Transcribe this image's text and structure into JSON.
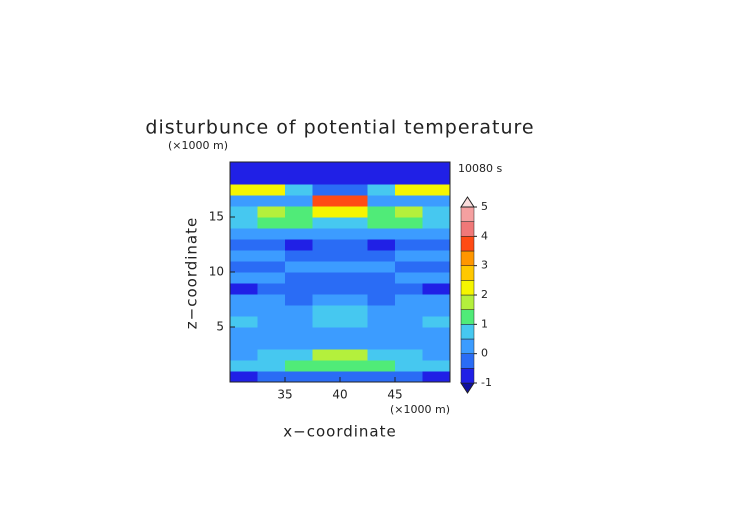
{
  "chart_data": {
    "type": "contourf",
    "title": "disturbunce of potential temperature",
    "time_label": "10080 s",
    "x_label": "x−coordinate",
    "y_label": "z−coordinate",
    "x_unit": "(×1000 m)",
    "y_unit": "(×1000 m)",
    "xlim": [
      30,
      50
    ],
    "ylim": [
      0,
      20
    ],
    "xticks": [
      35,
      40,
      45
    ],
    "yticks": [
      5,
      10,
      15
    ],
    "x": [
      31.25,
      33.75,
      36.25,
      38.75,
      41.25,
      43.75,
      46.25,
      48.75
    ],
    "y": [
      0.5,
      1.5,
      2.5,
      3.5,
      4.5,
      5.5,
      6.5,
      7.5,
      8.5,
      9.5,
      10.5,
      11.5,
      12.5,
      13.5,
      14.5,
      15.5,
      16.5,
      17.5,
      18.5,
      19.5
    ],
    "values": [
      [
        -0.6,
        -0.4,
        -0.3,
        -0.2,
        -0.2,
        -0.3,
        -0.4,
        -0.6
      ],
      [
        0.6,
        0.8,
        1.0,
        1.3,
        1.3,
        1.0,
        0.8,
        0.6
      ],
      [
        0.3,
        0.6,
        0.9,
        1.6,
        1.5,
        0.9,
        0.6,
        0.3
      ],
      [
        0.2,
        0.2,
        0.3,
        0.4,
        0.4,
        0.3,
        0.2,
        0.2
      ],
      [
        0.3,
        0.2,
        0.1,
        0.2,
        0.2,
        0.1,
        0.2,
        0.3
      ],
      [
        0.6,
        0.3,
        0.2,
        0.7,
        0.7,
        0.2,
        0.3,
        0.6
      ],
      [
        0.3,
        0.3,
        0.2,
        0.6,
        0.6,
        0.2,
        0.3,
        0.3
      ],
      [
        0.1,
        0.0,
        -0.1,
        0.2,
        0.2,
        -0.1,
        0.0,
        0.1
      ],
      [
        -0.6,
        -0.3,
        -0.2,
        -0.1,
        -0.1,
        -0.2,
        -0.3,
        -0.6
      ],
      [
        0.2,
        0.1,
        -0.2,
        -0.3,
        -0.3,
        -0.2,
        0.1,
        0.2
      ],
      [
        -0.3,
        -0.2,
        0.1,
        0.2,
        0.2,
        0.1,
        -0.2,
        -0.3
      ],
      [
        0.2,
        0.1,
        -0.3,
        -0.2,
        -0.2,
        -0.3,
        0.1,
        0.2
      ],
      [
        -0.2,
        -0.3,
        -0.6,
        -0.4,
        -0.4,
        -0.6,
        -0.3,
        -0.2
      ],
      [
        0.3,
        0.4,
        0.2,
        0.1,
        0.1,
        0.2,
        0.4,
        0.3
      ],
      [
        0.9,
        1.3,
        1.0,
        0.7,
        0.7,
        1.0,
        1.3,
        0.9
      ],
      [
        0.8,
        1.6,
        1.3,
        2.4,
        2.4,
        1.3,
        1.6,
        0.8
      ],
      [
        0.2,
        0.3,
        0.4,
        3.6,
        3.6,
        0.4,
        0.3,
        0.2
      ],
      [
        2.1,
        2.4,
        0.6,
        -0.2,
        -0.2,
        0.6,
        2.4,
        2.1
      ],
      [
        -0.6,
        -0.7,
        -0.6,
        -0.6,
        -0.6,
        -0.6,
        -0.7,
        -0.6
      ],
      [
        -0.8,
        -0.8,
        -0.8,
        -0.8,
        -0.8,
        -0.8,
        -0.8,
        -0.8
      ]
    ],
    "levels": [
      -1,
      -0.5,
      0,
      0.5,
      1,
      1.5,
      2,
      2.5,
      3,
      3.5,
      4,
      4.5,
      5
    ],
    "colors": [
      "#1010a0",
      "#2020e6",
      "#2a6cf5",
      "#3c9cff",
      "#46c8f0",
      "#50eb78",
      "#b4f03c",
      "#f5f500",
      "#ffc800",
      "#ff9600",
      "#ff4b14",
      "#f07878",
      "#f5a0a0",
      "#fadcdc"
    ],
    "colorbar_ticks": [
      -1,
      0,
      1,
      2,
      3,
      4,
      5
    ]
  }
}
